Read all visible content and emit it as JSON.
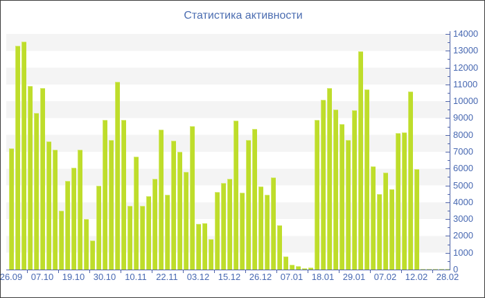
{
  "title": "Статистика активности",
  "colors": {
    "bar": "#bedd2b",
    "bar_highlight": "#d9ec80",
    "axis": "#4d62a8",
    "tick_label": "#4667b1",
    "title_text": "#4a6cb0",
    "stripe_band": "#f4f4f4",
    "background": "#ffffff"
  },
  "chart_data": {
    "type": "bar",
    "title": "Статистика активности",
    "xlabel": "",
    "ylabel": "",
    "ylim": [
      0,
      14000
    ],
    "y_tick_step": 1000,
    "y_ticks": [
      0,
      1000,
      2000,
      3000,
      4000,
      5000,
      6000,
      7000,
      8000,
      9000,
      10000,
      11000,
      12000,
      13000,
      14000
    ],
    "y_axis_position": "right",
    "grid": "alternating horizontal bands of 1000 units",
    "legend_position": "none",
    "x_tick_labels": [
      "26.09",
      "07.10",
      "19.10",
      "30.10",
      "10.11",
      "22.11",
      "03.12",
      "15.12",
      "26.12",
      "07.01",
      "18.01",
      "29.01",
      "07.02",
      "12.02",
      "28.02"
    ],
    "bars_per_x_label": 5,
    "values": [
      7200,
      13300,
      13550,
      10900,
      9300,
      10800,
      7620,
      7120,
      3520,
      5280,
      6060,
      7120,
      2990,
      1720,
      5000,
      8880,
      7700,
      11140,
      8880,
      3770,
      6720,
      3770,
      4380,
      5400,
      8310,
      4450,
      7650,
      7000,
      5810,
      8520,
      2700,
      2750,
      1800,
      4620,
      5160,
      5400,
      8840,
      4580,
      7700,
      8360,
      4940,
      4430,
      5460,
      2620,
      780,
      290,
      210,
      90,
      120,
      8890,
      10100,
      10780,
      9530,
      8630,
      7700,
      9470,
      12970,
      10690,
      6140,
      4470,
      5760,
      4780,
      8110,
      8150,
      10570,
      5950,
      60,
      60,
      60,
      60,
      60
    ]
  }
}
